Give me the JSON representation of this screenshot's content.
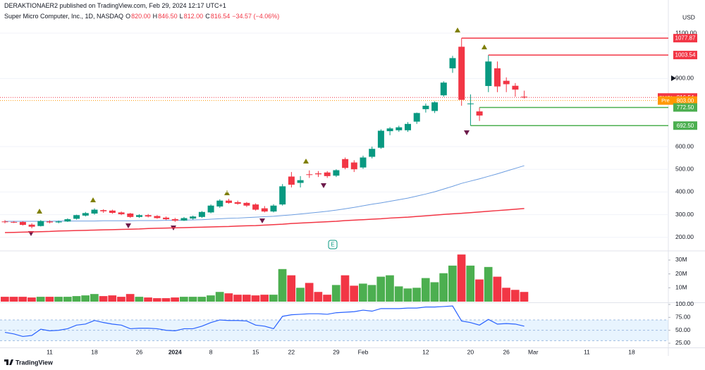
{
  "header": {
    "publisher": "DERAKTIONAER2 published on TradingView.com, Feb 29, 2024 12:17 UTC+1",
    "currency": "USD"
  },
  "earnings_marker": "E",
  "footer": {
    "brand": "TradingView"
  },
  "chart_data": [
    {
      "type": "candlestick",
      "title": "Super Micro Computer, Inc., 1D, NASDAQ",
      "quote": {
        "labels": [
          "O",
          "H",
          "L",
          "C"
        ],
        "values": [
          "820.00",
          "846.50",
          "812.00",
          "816.54"
        ],
        "change": "−34.57 (−4.06%)"
      },
      "categories": [
        null,
        null,
        null,
        null,
        null,
        "11",
        null,
        null,
        null,
        null,
        "18",
        null,
        null,
        null,
        null,
        "26",
        null,
        null,
        null,
        "2024",
        null,
        null,
        null,
        "8",
        null,
        null,
        null,
        null,
        "15",
        null,
        null,
        null,
        "22",
        null,
        null,
        null,
        null,
        "29",
        null,
        null,
        "Feb",
        null,
        null,
        null,
        null,
        null,
        null,
        "12",
        null,
        null,
        null,
        null,
        "20",
        null,
        null,
        null,
        "26",
        null,
        null,
        "Mar",
        null,
        null,
        null,
        null,
        null,
        "11",
        null,
        null,
        null,
        null,
        "18"
      ],
      "open": [
        270,
        268,
        268,
        256,
        250,
        270,
        266,
        270,
        282,
        296,
        305,
        320,
        318,
        310,
        305,
        290,
        298,
        294,
        287,
        280,
        274,
        283,
        290,
        310,
        336,
        362,
        355,
        352,
        345,
        328,
        314,
        345,
        468,
        440,
        478,
        482,
        486,
        472,
        545,
        530,
        508,
        555,
        595,
        668,
        672,
        672,
        710,
        765,
        757,
        826,
        945,
        1040,
        788,
        755,
        867,
        945,
        890,
        868,
        820,
        null,
        null,
        null,
        null,
        null,
        null,
        null,
        null,
        null,
        null,
        null,
        null
      ],
      "high": [
        276,
        272,
        271,
        262,
        276,
        275,
        274,
        284,
        300,
        312,
        328,
        324,
        322,
        314,
        308,
        302,
        303,
        298,
        292,
        286,
        290,
        296,
        316,
        345,
        368,
        370,
        362,
        356,
        350,
        338,
        346,
        435,
        488,
        470,
        495,
        492,
        492,
        500,
        552,
        540,
        560,
        600,
        676,
        686,
        692,
        708,
        750,
        790,
        800,
        888,
        1000,
        1077.87,
        830,
        772.5,
        1003.54,
        975,
        905,
        880,
        846.5,
        null,
        null,
        null,
        null,
        null,
        null,
        null,
        null,
        null,
        null,
        null,
        null
      ],
      "low": [
        262,
        263,
        252,
        240,
        248,
        262,
        262,
        268,
        278,
        292,
        300,
        308,
        304,
        298,
        286,
        286,
        288,
        282,
        276,
        268,
        272,
        278,
        286,
        306,
        330,
        348,
        344,
        334,
        318,
        310,
        310,
        340,
        420,
        420,
        462,
        466,
        462,
        466,
        500,
        488,
        502,
        548,
        590,
        650,
        665,
        665,
        700,
        750,
        748,
        820,
        925,
        780,
        692.5,
        713,
        840,
        840,
        840,
        820,
        812,
        null,
        null,
        null,
        null,
        null,
        null,
        null,
        null,
        null,
        null,
        null,
        null
      ],
      "close": [
        268,
        266,
        255,
        247,
        272,
        266,
        270,
        280,
        298,
        307,
        322,
        315,
        308,
        302,
        290,
        298,
        292,
        285,
        280,
        274,
        285,
        292,
        312,
        340,
        362,
        352,
        348,
        340,
        322,
        314,
        340,
        425,
        432,
        452,
        475,
        478,
        470,
        496,
        506,
        500,
        552,
        590,
        670,
        680,
        685,
        700,
        748,
        780,
        795,
        882,
        990,
        806,
        790,
        737,
        975,
        865,
        875,
        851.11,
        816.54,
        null,
        null,
        null,
        null,
        null,
        null,
        null,
        null,
        null,
        null,
        null,
        null
      ],
      "up_color": "#089981",
      "down_color": "#f23645",
      "series": [
        {
          "color": "#6c9de0",
          "values": [
            271,
            271,
            271,
            271,
            271,
            271,
            272,
            272,
            272,
            272,
            272,
            273,
            273,
            273,
            273,
            274,
            274,
            274,
            275,
            275,
            276,
            277,
            278,
            280,
            282,
            284,
            285,
            287,
            289,
            291,
            293,
            296,
            299,
            303,
            307,
            311,
            315,
            320,
            326,
            332,
            339,
            346,
            352,
            359,
            366,
            373,
            382,
            391,
            401,
            413,
            425,
            438,
            448,
            458,
            469,
            480,
            492,
            504,
            516,
            null,
            null,
            null,
            null,
            null,
            null,
            null,
            null,
            null,
            null,
            null,
            null
          ]
        },
        {
          "color": "#f23645",
          "values": [
            221,
            222,
            223,
            224,
            225,
            226,
            228,
            229,
            230,
            231,
            232,
            233,
            234,
            235,
            236,
            237,
            239,
            240,
            241,
            242,
            243,
            244,
            245,
            246,
            247,
            248,
            250,
            251,
            252,
            254,
            256,
            258,
            261,
            263,
            265,
            267,
            269,
            271,
            274,
            276,
            278,
            280,
            282,
            285,
            287,
            289,
            292,
            295,
            298,
            301,
            304,
            306,
            309,
            312,
            315,
            318,
            321,
            324,
            327,
            null,
            null,
            null,
            null,
            null,
            null,
            null,
            null,
            null,
            null,
            null,
            null
          ]
        }
      ],
      "levels": [
        {
          "value": 1077.87,
          "label": "1077.87",
          "color": "#f23645"
        },
        {
          "value": 1003.54,
          "label": "1003.54",
          "color": "#f23645"
        },
        {
          "value": 772.5,
          "label": "772.50",
          "color": "#4caf50"
        },
        {
          "value": 692.5,
          "label": "692.50",
          "color": "#4caf50"
        }
      ],
      "price_lines": [
        {
          "tag": "SMCI",
          "value": 816.54,
          "label": "816.54",
          "color": "#f23645"
        },
        {
          "tag": "Pre",
          "value": 803,
          "label": "803.00",
          "color": "#ff9800"
        }
      ],
      "ylim": [
        143.5,
        1246
      ],
      "yticks": [
        {
          "value": 200,
          "label": "200.00"
        },
        {
          "value": 300,
          "label": "300.00"
        },
        {
          "value": 400,
          "label": "400.00"
        },
        {
          "value": 500,
          "label": "500.00"
        },
        {
          "value": 600,
          "label": "600.00"
        },
        {
          "value": 900,
          "label": "900.00"
        },
        {
          "value": 1100,
          "label": "1100.00"
        }
      ],
      "grid": true
    },
    {
      "type": "bar",
      "up_color": "#4caf50",
      "down_color": "#f23645",
      "values": [
        3500000,
        3500000,
        3500000,
        3000000,
        3500000,
        3500000,
        3500000,
        3500000,
        4000000,
        4500000,
        5500000,
        4000000,
        4500000,
        3500000,
        5500000,
        3500000,
        3000000,
        2500000,
        2500000,
        3000000,
        3500000,
        3500000,
        3500000,
        4500000,
        7000000,
        6000000,
        5000000,
        5000000,
        4500000,
        5000000,
        5000000,
        23500000,
        19000000,
        10000000,
        13500000,
        7000000,
        5000000,
        12000000,
        19000000,
        11500000,
        13000000,
        12000000,
        18000000,
        19000000,
        11000000,
        9500000,
        10000000,
        17000000,
        14000000,
        20500000,
        26000000,
        34000000,
        26000000,
        16000000,
        25000000,
        18000000,
        10000000,
        8500000,
        7000000,
        null,
        null,
        null,
        null,
        null,
        null,
        null,
        null,
        null,
        null,
        null,
        null
      ],
      "ylim": [
        0,
        36100000
      ],
      "yticks": [
        {
          "value": 10000000,
          "label": "10M"
        },
        {
          "value": 20000000,
          "label": "20M"
        },
        {
          "value": 30000000,
          "label": "30M"
        }
      ]
    },
    {
      "type": "line",
      "color": "#2962ff",
      "band": [
        30,
        70
      ],
      "midline": 50,
      "values": [
        46,
        43,
        38,
        40,
        52,
        49,
        50,
        53,
        60,
        62,
        69,
        65,
        62,
        60,
        53,
        54,
        54,
        53,
        50,
        49,
        53,
        53,
        58,
        65,
        70,
        69,
        69,
        68,
        60,
        58,
        53,
        77,
        80,
        81,
        82,
        82,
        81,
        84,
        85,
        86,
        89,
        87,
        92,
        92,
        92,
        93,
        93,
        95,
        95,
        96,
        97,
        68,
        65,
        60,
        71,
        62,
        63,
        62,
        58,
        null,
        null,
        null,
        null,
        null,
        null,
        null,
        null,
        null,
        null,
        null,
        null
      ],
      "ylim": [
        16.8,
        102.7
      ],
      "yticks": [
        {
          "value": 25,
          "label": "25.00"
        },
        {
          "value": 50,
          "label": "50.00"
        },
        {
          "value": 75,
          "label": "75.00"
        },
        {
          "value": 100,
          "label": "100.00"
        }
      ]
    }
  ]
}
